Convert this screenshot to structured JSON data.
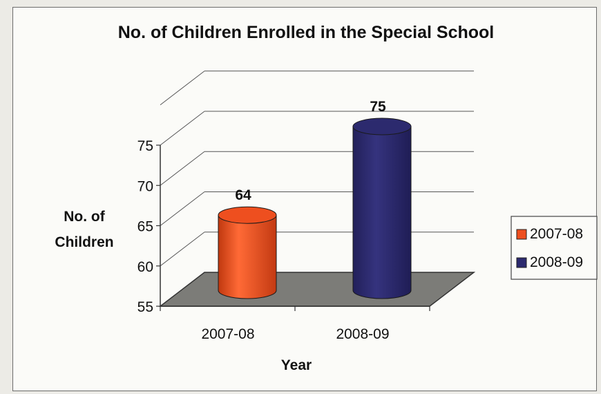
{
  "chart_data": {
    "type": "bar",
    "title": "No. of Children Enrolled in the Special School",
    "xlabel": "Year",
    "ylabel": [
      "No. of",
      "Children"
    ],
    "categories": [
      "2007-08",
      "2008-09"
    ],
    "values": [
      64,
      75
    ],
    "colors": [
      "#ee4f1f",
      "#2c2a6e"
    ],
    "ylim": [
      55,
      75
    ],
    "yticks": [
      55,
      60,
      65,
      70,
      75
    ],
    "grid": true,
    "legend": {
      "position": "right",
      "entries": [
        "2007-08",
        "2008-09"
      ]
    }
  }
}
